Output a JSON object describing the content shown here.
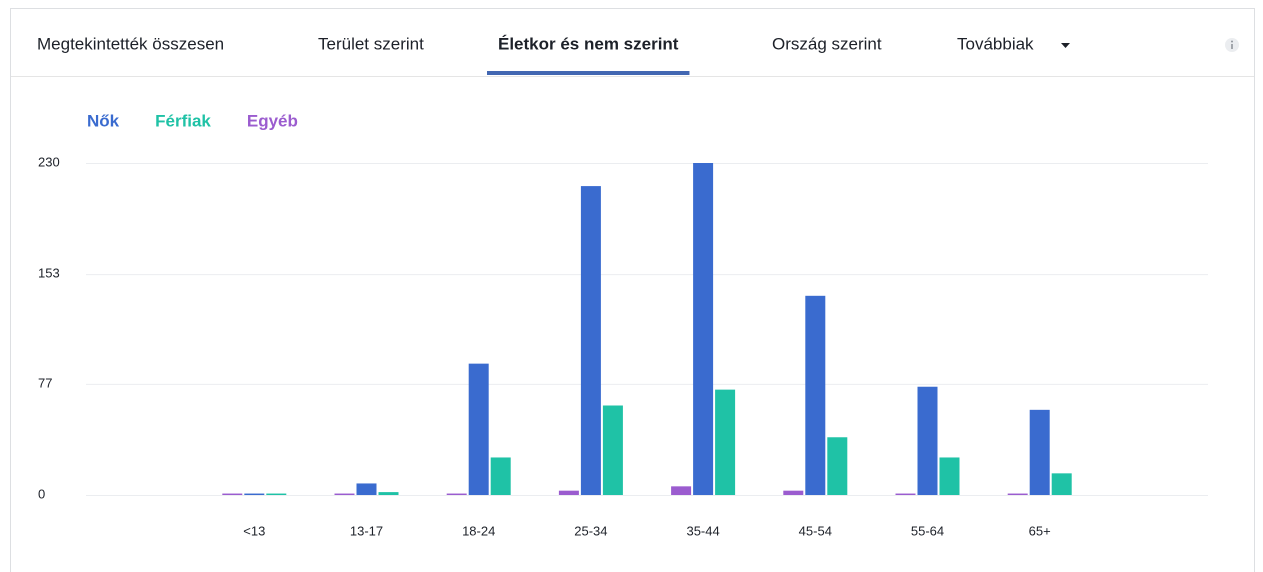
{
  "tabs": [
    "Megtekintették összesen",
    "Terület szerint",
    "Életkor és nem szerint",
    "Ország szerint",
    "Továbbiak"
  ],
  "active_tab": 2,
  "chart_data": {
    "type": "bar",
    "categories": [
      "<13",
      "13-17",
      "18-24",
      "25-34",
      "35-44",
      "45-54",
      "55-64",
      "65+"
    ],
    "series": [
      {
        "name": "Egyéb",
        "color": "#9b5ccf",
        "values": [
          1,
          1,
          1,
          3,
          6,
          3,
          1,
          1
        ]
      },
      {
        "name": "Nők",
        "color": "#3a6bcf",
        "values": [
          1,
          8,
          91,
          214,
          230,
          138,
          75,
          59
        ]
      },
      {
        "name": "Férfiak",
        "color": "#1fc2a6",
        "values": [
          1,
          2,
          26,
          62,
          73,
          40,
          26,
          15
        ]
      }
    ],
    "legend_order": [
      1,
      2,
      0
    ],
    "ylim": [
      0,
      230
    ],
    "yticks": [
      0,
      77,
      153,
      230
    ],
    "grid": true
  }
}
